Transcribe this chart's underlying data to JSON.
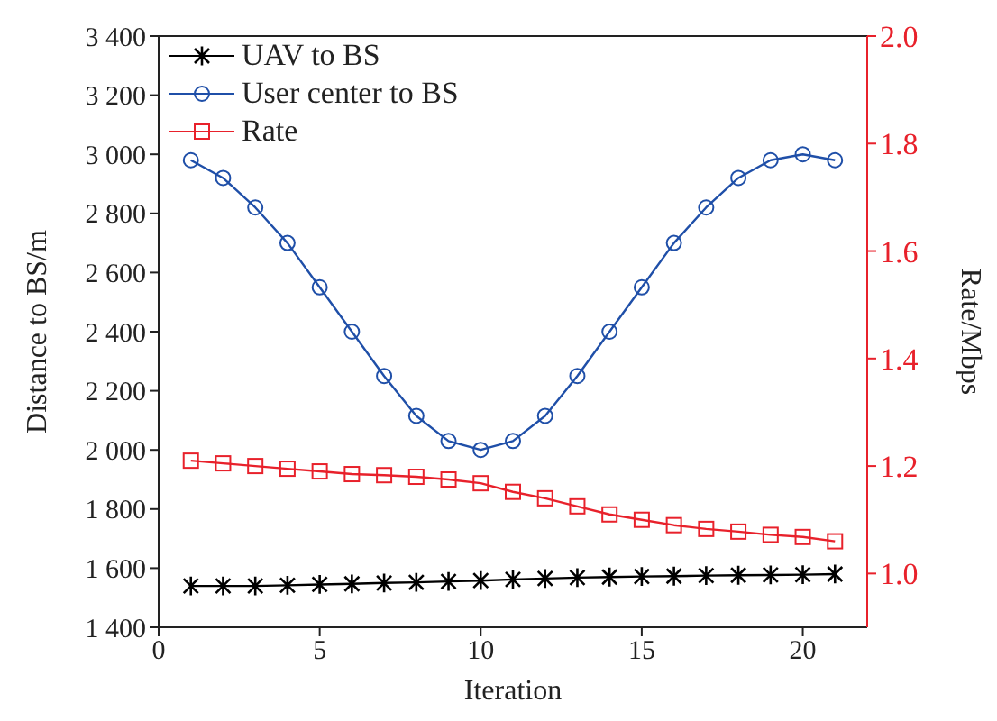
{
  "chart_data": {
    "type": "line",
    "xlabel": "Iteration",
    "ylabel": "Distance to BS/m",
    "y2label": "Rate/Mbps",
    "x": [
      1,
      2,
      3,
      4,
      5,
      6,
      7,
      8,
      9,
      10,
      11,
      12,
      13,
      14,
      15,
      16,
      17,
      18,
      19,
      20,
      21
    ],
    "series": [
      {
        "name": "UAV to BS",
        "color": "#000000",
        "marker": "cross",
        "values": [
          1540,
          1540,
          1540,
          1542,
          1545,
          1547,
          1550,
          1552,
          1555,
          1558,
          1562,
          1565,
          1568,
          1570,
          1572,
          1573,
          1575,
          1576,
          1577,
          1578,
          1580
        ]
      },
      {
        "name": "User center to BS",
        "color": "#1f4fa8",
        "marker": "circle",
        "values": [
          2980,
          2920,
          2820,
          2700,
          2550,
          2400,
          2250,
          2115,
          2030,
          2000,
          2030,
          2115,
          2250,
          2400,
          2550,
          2700,
          2820,
          2920,
          2980,
          3000,
          2980
        ]
      },
      {
        "name": "Rate",
        "color": "#e8212b",
        "marker": "square",
        "axis": "y2",
        "values": [
          1.21,
          1.205,
          1.2,
          1.195,
          1.19,
          1.185,
          1.183,
          1.18,
          1.175,
          1.168,
          1.152,
          1.14,
          1.125,
          1.11,
          1.1,
          1.09,
          1.083,
          1.078,
          1.072,
          1.068,
          1.06
        ]
      }
    ],
    "xlim": [
      0,
      22
    ],
    "xticks": [
      0,
      5,
      10,
      15,
      20
    ],
    "ylim": [
      1400,
      3400
    ],
    "yticks": [
      {
        "value": 1400,
        "label": "1 400"
      },
      {
        "value": 1600,
        "label": "1 600"
      },
      {
        "value": 1800,
        "label": "1 800"
      },
      {
        "value": 2000,
        "label": "2 000"
      },
      {
        "value": 2200,
        "label": "2 200"
      },
      {
        "value": 2400,
        "label": "2 400"
      },
      {
        "value": 2600,
        "label": "2 600"
      },
      {
        "value": 2800,
        "label": "2 800"
      },
      {
        "value": 3000,
        "label": "3 000"
      },
      {
        "value": 3200,
        "label": "3 200"
      },
      {
        "value": 3400,
        "label": "3 400"
      }
    ],
    "y2lim": [
      0.9,
      2.0
    ],
    "y2ticks": [
      {
        "value": 1.0,
        "label": "1.0"
      },
      {
        "value": 1.2,
        "label": "1.2"
      },
      {
        "value": 1.4,
        "label": "1.4"
      },
      {
        "value": 1.6,
        "label": "1.6"
      },
      {
        "value": 1.8,
        "label": "1.8"
      },
      {
        "value": 2.0,
        "label": "2.0"
      }
    ],
    "grid": false,
    "legend": "top left",
    "line_style": "solid"
  }
}
